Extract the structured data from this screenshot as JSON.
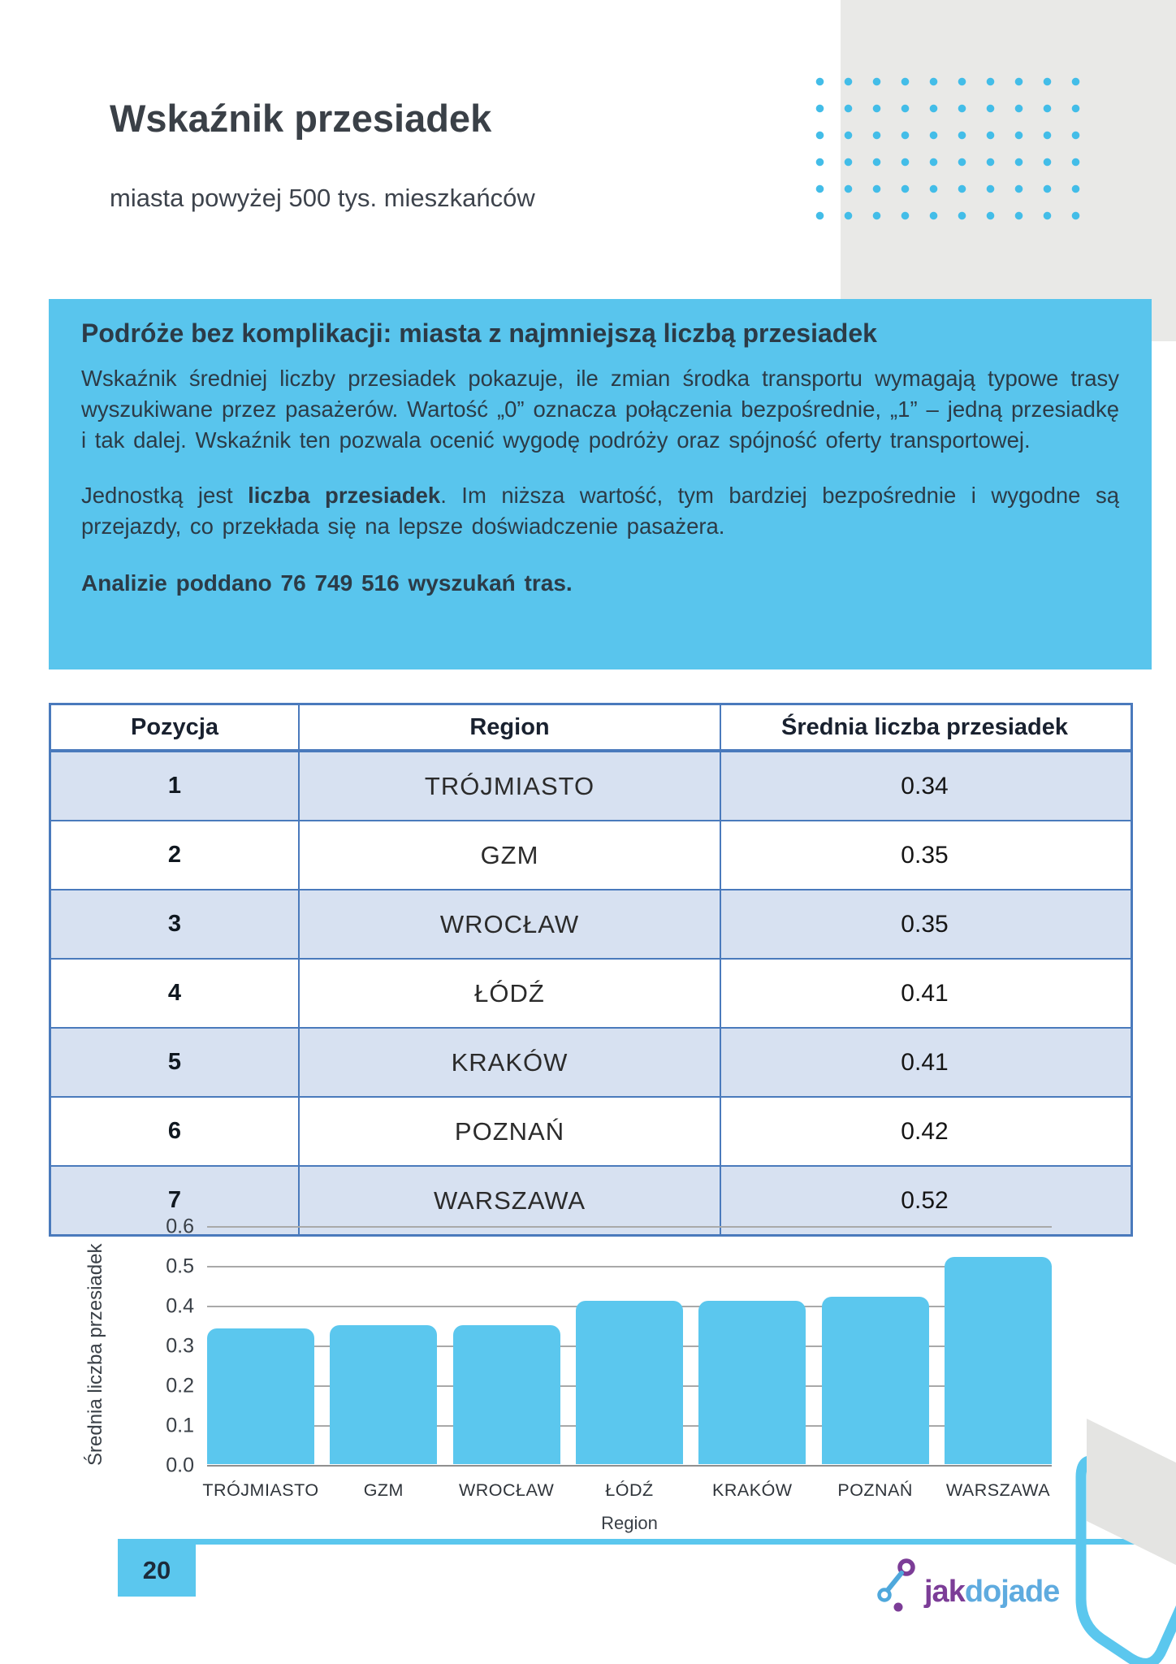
{
  "page": {
    "number": "20"
  },
  "header": {
    "title": "Wskaźnik przesiadek",
    "subtitle": "miasta powyżej 500 tys. mieszkańców"
  },
  "infobox": {
    "heading": "Podróże bez komplikacji: miasta z najmniejszą liczbą przesiadek",
    "para1": "Wskaźnik średniej liczby przesiadek pokazuje, ile zmian środka transportu wymagają typowe trasy wyszukiwane przez pasażerów. Wartość „0” oznacza połączenia bezpośrednie, „1” – jedną przesiadkę i tak dalej. Wskaźnik ten pozwala ocenić wygodę podróży oraz spójność oferty transportowej.",
    "para2_prefix": "Jednostką jest ",
    "para2_bold": "liczba przesiadek",
    "para2_suffix": ". Im niższa wartość, tym bardziej bezpośrednie i wygodne są przejazdy, co przekłada się na lepsze doświadczenie pasażera.",
    "para3": "Analizie poddano 76 749 516 wyszukań tras."
  },
  "table": {
    "columns": [
      "Pozycja",
      "Region",
      "Średnia liczba przesiadek"
    ],
    "rows": [
      [
        "1",
        "TRÓJMIASTO",
        "0.34"
      ],
      [
        "2",
        "GZM",
        "0.35"
      ],
      [
        "3",
        "WROCŁAW",
        "0.35"
      ],
      [
        "4",
        "ŁÓDŹ",
        "0.41"
      ],
      [
        "5",
        "KRAKÓW",
        "0.41"
      ],
      [
        "6",
        "POZNAŃ",
        "0.42"
      ],
      [
        "7",
        "WARSZAWA",
        "0.52"
      ]
    ]
  },
  "chart_data": {
    "type": "bar",
    "categories": [
      "TRÓJMIASTO",
      "GZM",
      "WROCŁAW",
      "ŁÓDŹ",
      "KRAKÓW",
      "POZNAŃ",
      "WARSZAWA"
    ],
    "values": [
      0.34,
      0.35,
      0.35,
      0.41,
      0.41,
      0.42,
      0.52
    ],
    "title": "",
    "xlabel": "Region",
    "ylabel": "Średnia liczba przesiadek",
    "ylim": [
      0,
      0.6
    ],
    "ytick_step": 0.1,
    "grid": true,
    "legend": false,
    "bar_color": "#5bc7ee"
  },
  "footer": {
    "logo_jak": "jak",
    "logo_dojade": "dojade"
  },
  "colors": {
    "accent_blue": "#5bc7ee",
    "table_border_blue": "#4a7abc",
    "table_stripe": "#d7e1f1",
    "dark_text": "#39414b",
    "logo_purple": "#7c3d97",
    "logo_blue": "#5fabdf",
    "deco_gray": "#e9e9e7",
    "dot_blue": "#43bde8"
  }
}
